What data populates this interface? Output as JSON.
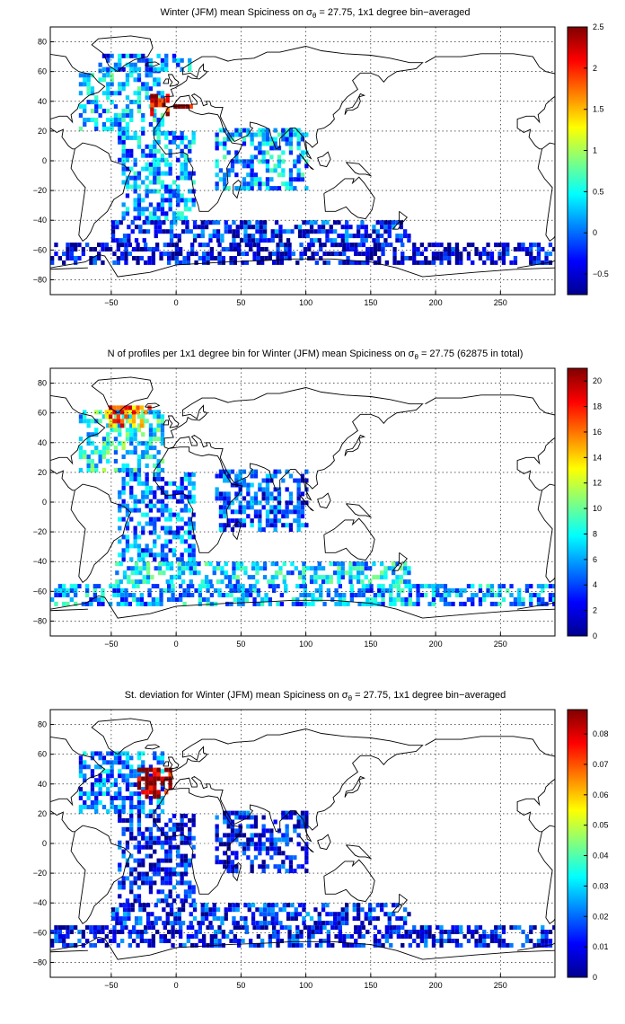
{
  "colors": {
    "jet": [
      "#00008f",
      "#0000ff",
      "#0080ff",
      "#00ffff",
      "#80ff80",
      "#ffff00",
      "#ff8000",
      "#ff0000",
      "#800000"
    ],
    "coast": "#000000"
  },
  "chart_data": [
    {
      "type": "heatmap",
      "title_pre": "Winter (JFM) mean Spiciness on σ",
      "title_sub": "θ",
      "title_post": " = 27.75, 1x1 degree bin−averaged",
      "x_ticks": [
        "−50",
        "0",
        "50",
        "100",
        "150",
        "200",
        "250"
      ],
      "x_tick_values": [
        -50,
        0,
        50,
        100,
        150,
        200,
        250
      ],
      "y_ticks": [
        "80",
        "60",
        "40",
        "20",
        "0",
        "−20",
        "−40",
        "−60",
        "−80"
      ],
      "y_tick_values": [
        80,
        60,
        40,
        20,
        0,
        -20,
        -40,
        -60,
        -80
      ],
      "xlim": [
        -97,
        292
      ],
      "ylim": [
        -90,
        90
      ],
      "colorbar_ticks": [
        "2.5",
        "2",
        "1.5",
        "1",
        "0.5",
        "0",
        "−0.5"
      ],
      "colorbar_values": [
        2.5,
        2,
        1.5,
        1,
        0.5,
        0,
        -0.5
      ],
      "clim": [
        -0.75,
        2.5
      ],
      "grid": true,
      "regions": [
        {
          "lon": [
            -75,
            -10
          ],
          "lat": [
            20,
            60
          ],
          "value": 0.3
        },
        {
          "lon": [
            -20,
            -5
          ],
          "lat": [
            30,
            45
          ],
          "value": 2.1
        },
        {
          "lon": [
            -5,
            15
          ],
          "lat": [
            35,
            38
          ],
          "value": 2.4
        },
        {
          "lon": [
            -45,
            15
          ],
          "lat": [
            -40,
            20
          ],
          "value": 0.15
        },
        {
          "lon": [
            30,
            100
          ],
          "lat": [
            -20,
            20
          ],
          "value": 0.2
        },
        {
          "lon": [
            -97,
            292
          ],
          "lat": [
            -70,
            -55
          ],
          "value": -0.5
        },
        {
          "lon": [
            -50,
            180
          ],
          "lat": [
            -55,
            -40
          ],
          "value": -0.3
        },
        {
          "lon": [
            -60,
            10
          ],
          "lat": [
            60,
            70
          ],
          "value": 0.05
        }
      ]
    },
    {
      "type": "heatmap",
      "title_pre": "N of profiles per 1x1 degree bin for Winter (JFM) mean Spiciness on σ",
      "title_sub": "θ",
      "title_post": " = 27.75 (62875 in total)",
      "x_ticks": [
        "−50",
        "0",
        "50",
        "100",
        "150",
        "200",
        "250"
      ],
      "x_tick_values": [
        -50,
        0,
        50,
        100,
        150,
        200,
        250
      ],
      "y_ticks": [
        "80",
        "60",
        "40",
        "20",
        "0",
        "−20",
        "−40",
        "−60",
        "−80"
      ],
      "y_tick_values": [
        80,
        60,
        40,
        20,
        0,
        -20,
        -40,
        -60,
        -80
      ],
      "xlim": [
        -97,
        292
      ],
      "ylim": [
        -90,
        90
      ],
      "colorbar_ticks": [
        "20",
        "18",
        "16",
        "14",
        "12",
        "10",
        "8",
        "6",
        "4",
        "2",
        "0"
      ],
      "colorbar_values": [
        20,
        18,
        16,
        14,
        12,
        10,
        8,
        6,
        4,
        2,
        0
      ],
      "clim": [
        0,
        21
      ],
      "grid": true,
      "total_profiles": 62875,
      "regions": [
        {
          "lon": [
            -75,
            -10
          ],
          "lat": [
            20,
            60
          ],
          "value": 8
        },
        {
          "lon": [
            -55,
            -20
          ],
          "lat": [
            50,
            65
          ],
          "value": 16
        },
        {
          "lon": [
            -45,
            15
          ],
          "lat": [
            -40,
            20
          ],
          "value": 5
        },
        {
          "lon": [
            30,
            100
          ],
          "lat": [
            -20,
            20
          ],
          "value": 4
        },
        {
          "lon": [
            -97,
            292
          ],
          "lat": [
            -70,
            -55
          ],
          "value": 6
        },
        {
          "lon": [
            -50,
            180
          ],
          "lat": [
            -55,
            -40
          ],
          "value": 7
        }
      ]
    },
    {
      "type": "heatmap",
      "title_pre": "St. deviation for Winter (JFM) mean Spiciness on σ",
      "title_sub": "θ",
      "title_post": " = 27.75, 1x1 degree bin−averaged",
      "x_ticks": [
        "−50",
        "0",
        "50",
        "100",
        "150",
        "200",
        "250"
      ],
      "x_tick_values": [
        -50,
        0,
        50,
        100,
        150,
        200,
        250
      ],
      "y_ticks": [
        "80",
        "60",
        "40",
        "20",
        "0",
        "−20",
        "−40",
        "−60",
        "−80"
      ],
      "y_tick_values": [
        80,
        60,
        40,
        20,
        0,
        -20,
        -40,
        -60,
        -80
      ],
      "xlim": [
        -97,
        292
      ],
      "ylim": [
        -90,
        90
      ],
      "colorbar_ticks": [
        "0.08",
        "0.07",
        "0.06",
        "0.05",
        "0.04",
        "0.03",
        "0.02",
        "0.01",
        "0"
      ],
      "colorbar_values": [
        0.08,
        0.07,
        0.06,
        0.05,
        0.04,
        0.03,
        0.02,
        0.01,
        0
      ],
      "clim": [
        0,
        0.088
      ],
      "grid": true,
      "regions": [
        {
          "lon": [
            -75,
            -10
          ],
          "lat": [
            20,
            60
          ],
          "value": 0.02
        },
        {
          "lon": [
            -30,
            -5
          ],
          "lat": [
            30,
            50
          ],
          "value": 0.085
        },
        {
          "lon": [
            -45,
            15
          ],
          "lat": [
            -40,
            20
          ],
          "value": 0.01
        },
        {
          "lon": [
            30,
            100
          ],
          "lat": [
            -20,
            20
          ],
          "value": 0.01
        },
        {
          "lon": [
            -97,
            292
          ],
          "lat": [
            -70,
            -55
          ],
          "value": 0.01
        },
        {
          "lon": [
            -50,
            180
          ],
          "lat": [
            -55,
            -40
          ],
          "value": 0.012
        }
      ]
    }
  ]
}
